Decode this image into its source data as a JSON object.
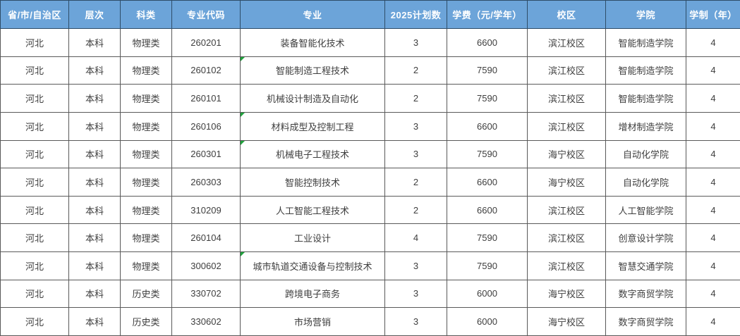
{
  "colors": {
    "header_bg": "#6CA4D9",
    "header_text": "#FFFFFF",
    "body_bg": "#FFFFFF",
    "body_text": "#3E3E3E",
    "grid_border": "#595959",
    "header_border": "#2E4D68",
    "flag_green": "#1FA23C"
  },
  "table": {
    "columns": [
      {
        "key": "province",
        "label": "省/市/自治区"
      },
      {
        "key": "level",
        "label": "层次"
      },
      {
        "key": "category",
        "label": "科类"
      },
      {
        "key": "major-code",
        "label": "专业代码"
      },
      {
        "key": "major",
        "label": "专业"
      },
      {
        "key": "plan-2025",
        "label": "2025计划数"
      },
      {
        "key": "tuition",
        "label": "学费（元/学年）"
      },
      {
        "key": "campus",
        "label": "校区"
      },
      {
        "key": "college",
        "label": "学院"
      },
      {
        "key": "duration",
        "label": "学制（年）"
      }
    ],
    "rows": [
      [
        "河北",
        "本科",
        "物理类",
        "260201",
        "装备智能化技术",
        "3",
        "6600",
        "滨江校区",
        "智能制造学院",
        "4"
      ],
      [
        "河北",
        "本科",
        "物理类",
        "260102",
        "智能制造工程技术",
        "2",
        "7590",
        "滨江校区",
        "智能制造学院",
        "4"
      ],
      [
        "河北",
        "本科",
        "物理类",
        "260101",
        "机械设计制造及自动化",
        "2",
        "7590",
        "滨江校区",
        "智能制造学院",
        "4"
      ],
      [
        "河北",
        "本科",
        "物理类",
        "260106",
        "材料成型及控制工程",
        "3",
        "6600",
        "滨江校区",
        "增材制造学院",
        "4"
      ],
      [
        "河北",
        "本科",
        "物理类",
        "260301",
        "机械电子工程技术",
        "3",
        "7590",
        "海宁校区",
        "自动化学院",
        "4"
      ],
      [
        "河北",
        "本科",
        "物理类",
        "260303",
        "智能控制技术",
        "2",
        "6600",
        "海宁校区",
        "自动化学院",
        "4"
      ],
      [
        "河北",
        "本科",
        "物理类",
        "310209",
        "人工智能工程技术",
        "2",
        "6600",
        "滨江校区",
        "人工智能学院",
        "4"
      ],
      [
        "河北",
        "本科",
        "物理类",
        "260104",
        "工业设计",
        "4",
        "7590",
        "滨江校区",
        "创意设计学院",
        "4"
      ],
      [
        "河北",
        "本科",
        "物理类",
        "300602",
        "城市轨道交通设备与控制技术",
        "3",
        "7590",
        "滨江校区",
        "智慧交通学院",
        "4"
      ],
      [
        "河北",
        "本科",
        "历史类",
        "330702",
        "跨境电子商务",
        "3",
        "6000",
        "海宁校区",
        "数字商贸学院",
        "4"
      ],
      [
        "河北",
        "本科",
        "历史类",
        "330602",
        "市场营销",
        "3",
        "6000",
        "海宁校区",
        "数字商贸学院",
        "4"
      ]
    ],
    "flagged_row_indices": [
      1,
      3,
      4,
      8
    ]
  }
}
